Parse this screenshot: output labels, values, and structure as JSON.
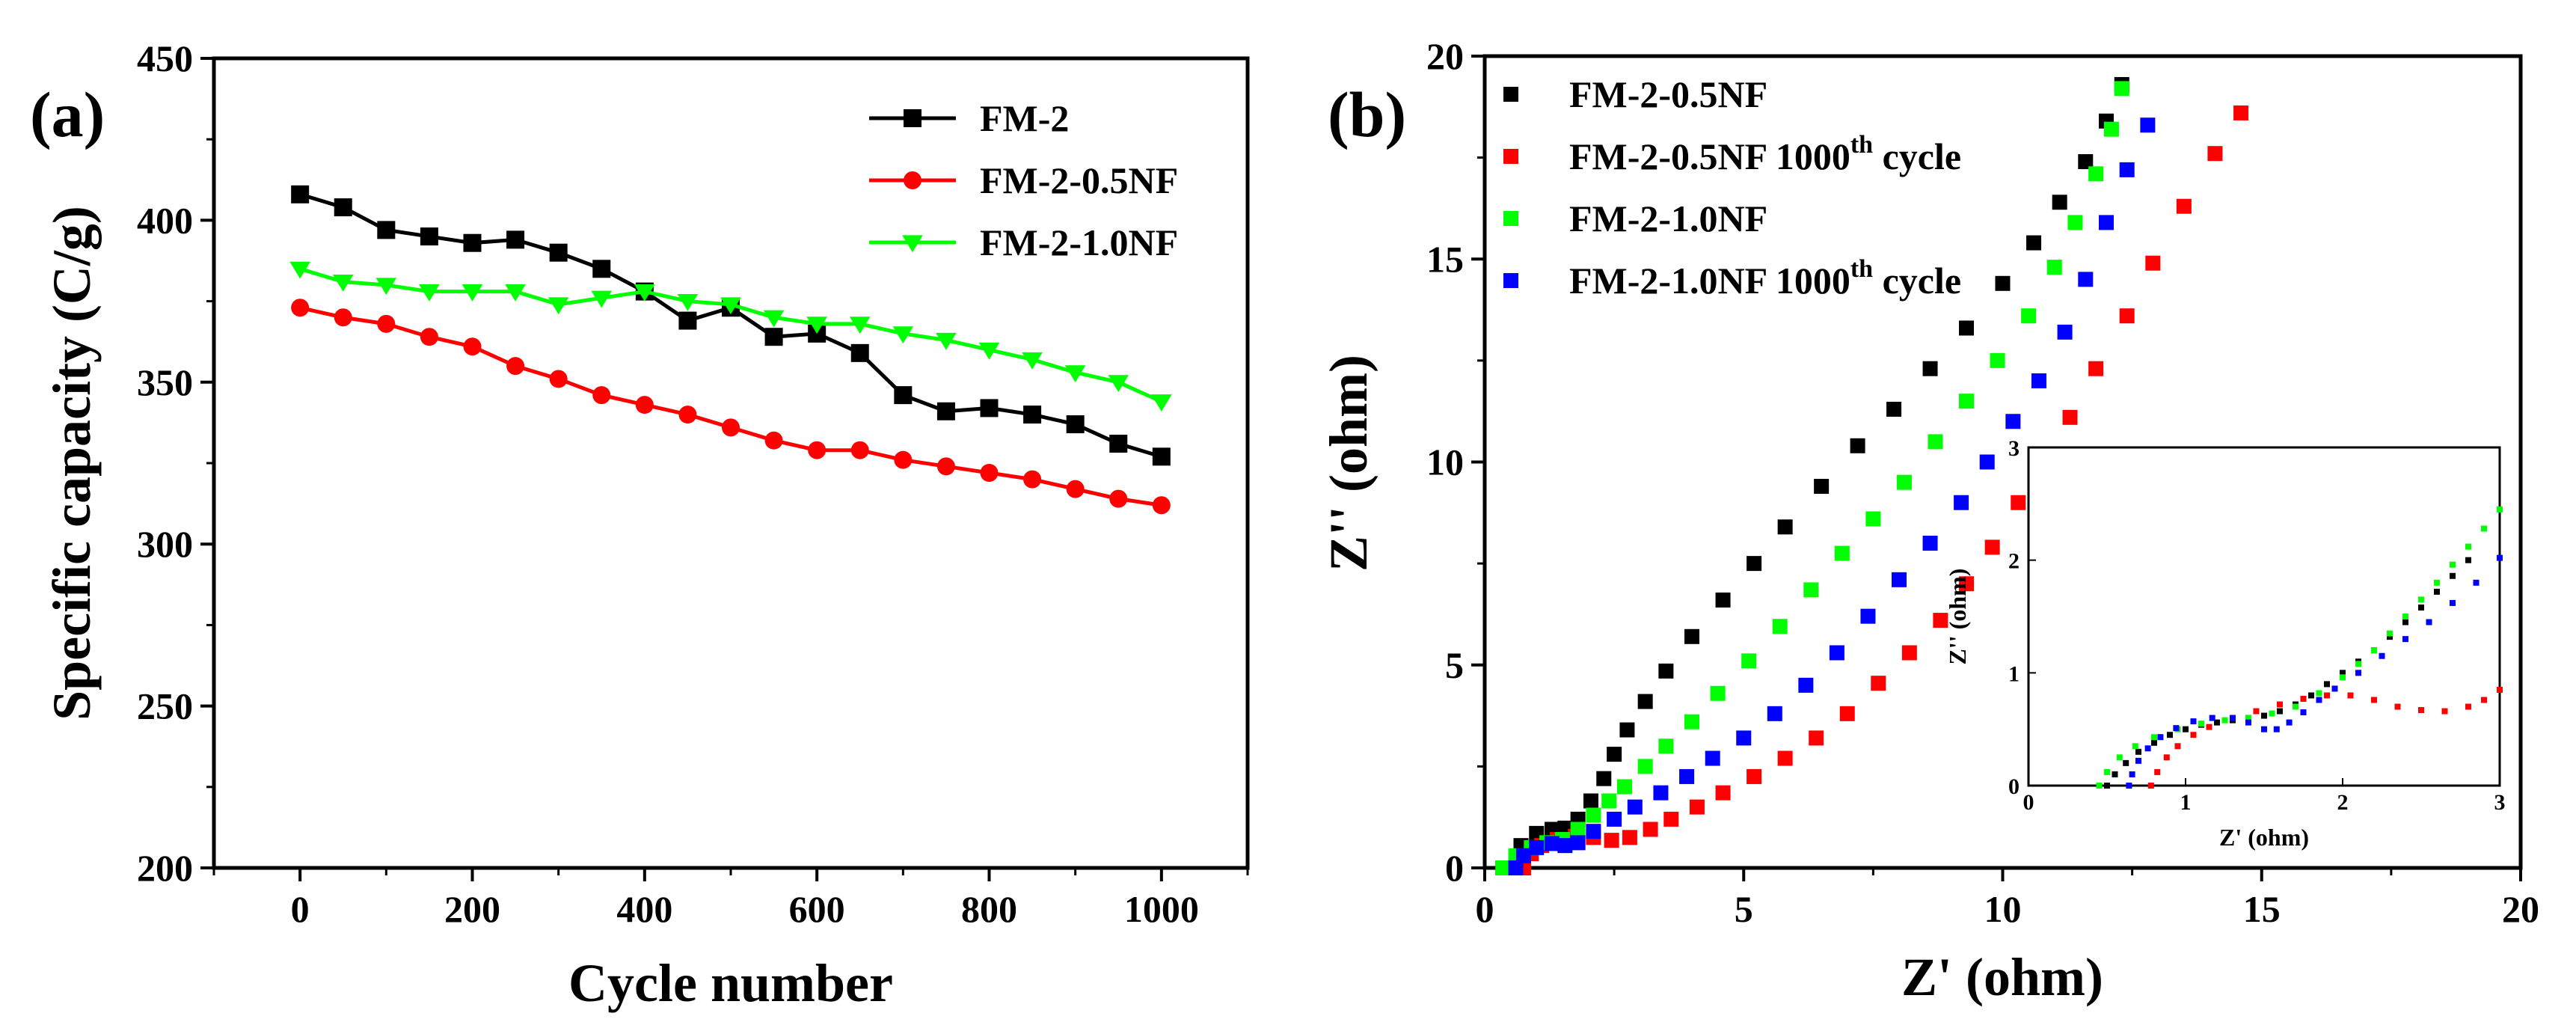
{
  "chart_data": [
    {
      "type": "line",
      "panel_label": "(a)",
      "xlabel": "Cycle number",
      "ylabel": "Specific capacity (C/g)",
      "xlim": [
        -100,
        1100
      ],
      "ylim": [
        200,
        450
      ],
      "xticks": [
        "0",
        "200",
        "400",
        "600",
        "800",
        "1000"
      ],
      "yticks": [
        "200",
        "250",
        "300",
        "350",
        "400",
        "450"
      ],
      "x": [
        0,
        50,
        100,
        150,
        200,
        250,
        300,
        350,
        400,
        450,
        500,
        550,
        600,
        650,
        700,
        750,
        800,
        850,
        900,
        950,
        1000
      ],
      "legend_position": "top-right",
      "series": [
        {
          "name": "FM-2",
          "color": "#000000",
          "marker": "square",
          "values": [
            408,
            404,
            397,
            395,
            393,
            394,
            390,
            385,
            378,
            369,
            373,
            364,
            365,
            359,
            346,
            341,
            342,
            340,
            337,
            331,
            327
          ]
        },
        {
          "name": "FM-2-0.5NF",
          "color": "#ff0000",
          "marker": "circle",
          "values": [
            373,
            370,
            368,
            364,
            361,
            355,
            351,
            346,
            343,
            340,
            336,
            332,
            329,
            329,
            326,
            324,
            322,
            320,
            317,
            314,
            312
          ]
        },
        {
          "name": "FM-2-1.0NF",
          "color": "#00ff00",
          "marker": "triangle-down",
          "values": [
            385,
            381,
            380,
            378,
            378,
            378,
            374,
            376,
            378,
            375,
            374,
            370,
            368,
            368,
            365,
            363,
            360,
            357,
            353,
            350,
            344
          ]
        }
      ]
    },
    {
      "type": "scatter",
      "panel_label": "(b)",
      "xlabel": "Z' (ohm)",
      "ylabel": "Z'' (ohm)",
      "xlim": [
        0,
        20
      ],
      "ylim": [
        0,
        20
      ],
      "xticks": [
        "0",
        "5",
        "10",
        "15",
        "20"
      ],
      "yticks": [
        "0",
        "5",
        "10",
        "15",
        "20"
      ],
      "legend_position": "top-left",
      "legend_ordinal": "th",
      "legend_suffix": "cycle",
      "series": [
        {
          "name": "FM-2-0.5NF",
          "color": "#000000",
          "marker": "square",
          "points": [
            [
              0.35,
              0
            ],
            [
              0.7,
              0.55
            ],
            [
              1.0,
              0.85
            ],
            [
              1.3,
              0.95
            ],
            [
              1.55,
              0.98
            ],
            [
              1.8,
              1.2
            ],
            [
              2.05,
              1.65
            ],
            [
              2.3,
              2.2
            ],
            [
              2.5,
              2.8
            ],
            [
              2.75,
              3.4
            ],
            [
              3.1,
              4.1
            ],
            [
              3.5,
              4.85
            ],
            [
              4.0,
              5.7
            ],
            [
              4.6,
              6.6
            ],
            [
              5.2,
              7.5
            ],
            [
              5.8,
              8.4
            ],
            [
              6.5,
              9.4
            ],
            [
              7.2,
              10.4
            ],
            [
              7.9,
              11.3
            ],
            [
              8.6,
              12.3
            ],
            [
              9.3,
              13.3
            ],
            [
              10.0,
              14.4
            ],
            [
              10.6,
              15.4
            ],
            [
              11.1,
              16.4
            ],
            [
              11.6,
              17.4
            ],
            [
              12.0,
              18.4
            ],
            [
              12.3,
              19.3
            ]
          ]
        },
        {
          "name": "FM-2-0.5NF 1000th cycle",
          "color": "#ff0000",
          "marker": "square",
          "points": [
            [
              0.75,
              0
            ],
            [
              0.9,
              0.35
            ],
            [
              1.1,
              0.55
            ],
            [
              1.4,
              0.7
            ],
            [
              1.75,
              0.78
            ],
            [
              2.1,
              0.75
            ],
            [
              2.45,
              0.68
            ],
            [
              2.8,
              0.75
            ],
            [
              3.2,
              0.95
            ],
            [
              3.6,
              1.2
            ],
            [
              4.1,
              1.5
            ],
            [
              4.6,
              1.85
            ],
            [
              5.2,
              2.25
            ],
            [
              5.8,
              2.7
            ],
            [
              6.4,
              3.2
            ],
            [
              7.0,
              3.8
            ],
            [
              7.6,
              4.55
            ],
            [
              8.2,
              5.3
            ],
            [
              8.8,
              6.1
            ],
            [
              9.3,
              7.0
            ],
            [
              9.8,
              7.9
            ],
            [
              10.3,
              9.0
            ],
            [
              10.8,
              10.0
            ],
            [
              11.3,
              11.1
            ],
            [
              11.8,
              12.3
            ],
            [
              12.4,
              13.6
            ],
            [
              12.9,
              14.9
            ],
            [
              13.5,
              16.3
            ],
            [
              14.1,
              17.6
            ],
            [
              14.6,
              18.6
            ]
          ]
        },
        {
          "name": "FM-2-1.0NF",
          "color": "#00ff00",
          "marker": "square",
          "points": [
            [
              0.35,
              0
            ],
            [
              0.6,
              0.3
            ],
            [
              0.9,
              0.5
            ],
            [
              1.2,
              0.62
            ],
            [
              1.5,
              0.7
            ],
            [
              1.8,
              0.95
            ],
            [
              2.1,
              1.3
            ],
            [
              2.4,
              1.65
            ],
            [
              2.7,
              2.0
            ],
            [
              3.1,
              2.5
            ],
            [
              3.5,
              3.0
            ],
            [
              4.0,
              3.6
            ],
            [
              4.5,
              4.3
            ],
            [
              5.1,
              5.1
            ],
            [
              5.7,
              5.95
            ],
            [
              6.3,
              6.85
            ],
            [
              6.9,
              7.75
            ],
            [
              7.5,
              8.6
            ],
            [
              8.1,
              9.5
            ],
            [
              8.7,
              10.5
            ],
            [
              9.3,
              11.5
            ],
            [
              9.9,
              12.5
            ],
            [
              10.5,
              13.6
            ],
            [
              11.0,
              14.8
            ],
            [
              11.4,
              15.9
            ],
            [
              11.8,
              17.1
            ],
            [
              12.1,
              18.2
            ],
            [
              12.3,
              19.2
            ]
          ]
        },
        {
          "name": "FM-2-1.0NF 1000th cycle",
          "color": "#0000ff",
          "marker": "square",
          "points": [
            [
              0.6,
              0
            ],
            [
              0.75,
              0.3
            ],
            [
              1.0,
              0.5
            ],
            [
              1.3,
              0.6
            ],
            [
              1.55,
              0.55
            ],
            [
              1.8,
              0.62
            ],
            [
              2.1,
              0.9
            ],
            [
              2.5,
              1.2
            ],
            [
              2.9,
              1.5
            ],
            [
              3.4,
              1.85
            ],
            [
              3.9,
              2.25
            ],
            [
              4.4,
              2.7
            ],
            [
              5.0,
              3.2
            ],
            [
              5.6,
              3.8
            ],
            [
              6.2,
              4.5
            ],
            [
              6.8,
              5.3
            ],
            [
              7.4,
              6.2
            ],
            [
              8.0,
              7.1
            ],
            [
              8.6,
              8.0
            ],
            [
              9.2,
              9.0
            ],
            [
              9.7,
              10.0
            ],
            [
              10.2,
              11.0
            ],
            [
              10.7,
              12.0
            ],
            [
              11.2,
              13.2
            ],
            [
              11.6,
              14.5
            ],
            [
              12.0,
              15.9
            ],
            [
              12.4,
              17.2
            ],
            [
              12.8,
              18.3
            ]
          ]
        }
      ],
      "inset": {
        "xlabel": "Z' (ohm)",
        "ylabel": "Z'' (ohm)",
        "xlim": [
          0,
          3
        ],
        "ylim": [
          0,
          3
        ],
        "xticks": [
          "0",
          "1",
          "2",
          "3"
        ],
        "yticks": [
          "0",
          "1",
          "2",
          "3"
        ],
        "series": [
          {
            "name": "FM-2-0.5NF",
            "color": "#000000",
            "points": [
              [
                0.5,
                0
              ],
              [
                0.55,
                0.1
              ],
              [
                0.62,
                0.2
              ],
              [
                0.7,
                0.3
              ],
              [
                0.8,
                0.38
              ],
              [
                0.9,
                0.45
              ],
              [
                1.0,
                0.5
              ],
              [
                1.1,
                0.54
              ],
              [
                1.2,
                0.56
              ],
              [
                1.3,
                0.58
              ],
              [
                1.4,
                0.6
              ],
              [
                1.5,
                0.62
              ],
              [
                1.6,
                0.66
              ],
              [
                1.7,
                0.72
              ],
              [
                1.8,
                0.8
              ],
              [
                1.9,
                0.9
              ],
              [
                2.0,
                1.0
              ],
              [
                2.1,
                1.1
              ],
              [
                2.2,
                1.2
              ],
              [
                2.3,
                1.32
              ],
              [
                2.4,
                1.45
              ],
              [
                2.5,
                1.58
              ],
              [
                2.6,
                1.72
              ],
              [
                2.7,
                1.86
              ],
              [
                2.8,
                2.0
              ]
            ]
          },
          {
            "name": "FM-2-0.5NF 1000th cycle",
            "color": "#ff0000",
            "points": [
              [
                0.78,
                0
              ],
              [
                0.82,
                0.12
              ],
              [
                0.88,
                0.25
              ],
              [
                0.95,
                0.35
              ],
              [
                1.05,
                0.45
              ],
              [
                1.15,
                0.52
              ],
              [
                1.3,
                0.6
              ],
              [
                1.45,
                0.66
              ],
              [
                1.6,
                0.72
              ],
              [
                1.75,
                0.77
              ],
              [
                1.9,
                0.8
              ],
              [
                2.05,
                0.8
              ],
              [
                2.2,
                0.76
              ],
              [
                2.35,
                0.7
              ],
              [
                2.5,
                0.67
              ],
              [
                2.65,
                0.66
              ],
              [
                2.8,
                0.7
              ],
              [
                2.9,
                0.76
              ],
              [
                3.0,
                0.85
              ]
            ]
          },
          {
            "name": "FM-2-1.0NF",
            "color": "#00ff00",
            "points": [
              [
                0.45,
                0
              ],
              [
                0.5,
                0.12
              ],
              [
                0.58,
                0.25
              ],
              [
                0.68,
                0.35
              ],
              [
                0.8,
                0.43
              ],
              [
                0.95,
                0.5
              ],
              [
                1.1,
                0.55
              ],
              [
                1.25,
                0.58
              ],
              [
                1.4,
                0.6
              ],
              [
                1.55,
                0.64
              ],
              [
                1.7,
                0.7
              ],
              [
                1.85,
                0.82
              ],
              [
                2.0,
                0.96
              ],
              [
                2.1,
                1.08
              ],
              [
                2.2,
                1.2
              ],
              [
                2.3,
                1.35
              ],
              [
                2.4,
                1.5
              ],
              [
                2.5,
                1.65
              ],
              [
                2.6,
                1.8
              ],
              [
                2.7,
                1.96
              ],
              [
                2.8,
                2.12
              ],
              [
                2.9,
                2.28
              ],
              [
                3.0,
                2.45
              ]
            ]
          },
          {
            "name": "FM-2-1.0NF 1000th cycle",
            "color": "#0000ff",
            "points": [
              [
                0.64,
                0
              ],
              [
                0.66,
                0.1
              ],
              [
                0.7,
                0.22
              ],
              [
                0.76,
                0.33
              ],
              [
                0.84,
                0.43
              ],
              [
                0.94,
                0.51
              ],
              [
                1.05,
                0.57
              ],
              [
                1.17,
                0.6
              ],
              [
                1.3,
                0.6
              ],
              [
                1.4,
                0.56
              ],
              [
                1.5,
                0.5
              ],
              [
                1.58,
                0.5
              ],
              [
                1.66,
                0.56
              ],
              [
                1.75,
                0.65
              ],
              [
                1.85,
                0.76
              ],
              [
                1.95,
                0.86
              ],
              [
                2.1,
                1.0
              ],
              [
                2.25,
                1.15
              ],
              [
                2.4,
                1.3
              ],
              [
                2.55,
                1.45
              ],
              [
                2.7,
                1.62
              ],
              [
                2.85,
                1.8
              ],
              [
                3.0,
                2.02
              ]
            ]
          }
        ]
      }
    }
  ]
}
